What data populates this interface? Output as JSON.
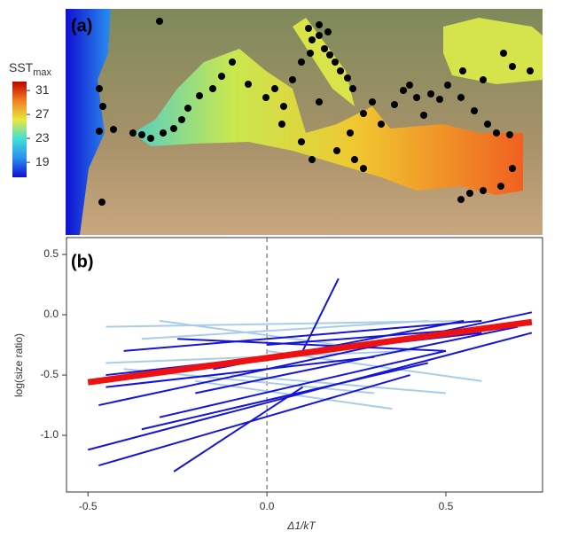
{
  "chart_data": [
    {
      "type": "map",
      "panel_label": "(a)",
      "colorbar": {
        "title": "SST",
        "title_sub": "max",
        "lim": [
          16.5,
          32.5
        ],
        "ticks": [
          19,
          23,
          27,
          31
        ],
        "colors": [
          "#1010d0",
          "#2a8ef0",
          "#40e0d8",
          "#e8e83c",
          "#f08020",
          "#c00000"
        ]
      }
    },
    {
      "type": "line",
      "panel_label": "(b)",
      "x_label": "Δ1/kT",
      "y_label": "log(size ratio)",
      "xlim": [
        -0.56,
        0.77
      ],
      "ylim": [
        -1.47,
        0.64
      ],
      "xticks": [
        -0.5,
        {
          "value": 0,
          "label": "0.0"
        },
        0.5
      ],
      "yticks": [
        {
          "value": -1,
          "label": "-1.0"
        },
        -0.5,
        {
          "value": 0,
          "label": "0.0"
        },
        0.5
      ],
      "vline": 0,
      "series": [
        {
          "color": "#a9cde8",
          "x": [
            -0.45,
            0.55
          ],
          "values": [
            -0.1,
            -0.05
          ]
        },
        {
          "color": "#a9cde8",
          "x": [
            -0.35,
            0.45
          ],
          "values": [
            -0.2,
            -0.05
          ]
        },
        {
          "color": "#a9cde8",
          "x": [
            -0.4,
            0.3
          ],
          "values": [
            -0.45,
            -0.65
          ]
        },
        {
          "color": "#a9cde8",
          "x": [
            -0.2,
            0.35
          ],
          "values": [
            -0.55,
            -0.78
          ]
        },
        {
          "color": "#a9cde8",
          "x": [
            0.0,
            0.6
          ],
          "values": [
            -0.3,
            -0.55
          ]
        },
        {
          "color": "#a9cde8",
          "x": [
            -0.1,
            0.5
          ],
          "values": [
            -0.5,
            -0.65
          ]
        },
        {
          "color": "#a9cde8",
          "x": [
            -0.3,
            0.2
          ],
          "values": [
            -0.05,
            -0.25
          ]
        },
        {
          "color": "#a9cde8",
          "x": [
            -0.45,
            0.4
          ],
          "values": [
            -0.4,
            -0.3
          ]
        },
        {
          "color": "#1515d8",
          "x": [
            -0.5,
            0.74
          ],
          "values": [
            -1.12,
            -0.15
          ]
        },
        {
          "color": "#1515d8",
          "x": [
            -0.47,
            0.4
          ],
          "values": [
            -1.25,
            -0.5
          ]
        },
        {
          "color": "#1515d8",
          "x": [
            -0.26,
            0.1
          ],
          "values": [
            -1.3,
            -0.6
          ]
        },
        {
          "color": "#1515d8",
          "x": [
            0.1,
            0.2
          ],
          "values": [
            -0.3,
            0.3
          ]
        },
        {
          "color": "#1515d8",
          "x": [
            -0.47,
            0.74
          ],
          "values": [
            -0.75,
            0.02
          ]
        },
        {
          "color": "#1515d8",
          "x": [
            -0.45,
            0.6
          ],
          "values": [
            -0.5,
            -0.15
          ]
        },
        {
          "color": "#1515d8",
          "x": [
            -0.3,
            0.5
          ],
          "values": [
            -0.85,
            -0.3
          ]
        },
        {
          "color": "#1515d8",
          "x": [
            -0.4,
            0.6
          ],
          "values": [
            -0.3,
            -0.05
          ]
        },
        {
          "color": "#1515d8",
          "x": [
            -0.2,
            0.7
          ],
          "values": [
            -0.65,
            -0.1
          ]
        },
        {
          "color": "#1515d8",
          "x": [
            -0.35,
            0.45
          ],
          "values": [
            -0.95,
            -0.4
          ]
        },
        {
          "color": "#1515d8",
          "x": [
            0.0,
            0.65
          ],
          "values": [
            -0.25,
            -0.1
          ]
        },
        {
          "color": "#1515d8",
          "x": [
            -0.45,
            0.3
          ],
          "values": [
            -0.6,
            -0.35
          ]
        },
        {
          "color": "#1515d8",
          "x": [
            -0.25,
            0.5
          ],
          "values": [
            -0.2,
            -0.3
          ]
        },
        {
          "color": "#1515d8",
          "x": [
            -0.15,
            0.55
          ],
          "values": [
            -0.45,
            -0.05
          ]
        },
        {
          "color": "#ee1111",
          "x": [
            -0.5,
            0.74
          ],
          "values": [
            -0.56,
            -0.06
          ],
          "width": 7
        }
      ]
    }
  ]
}
